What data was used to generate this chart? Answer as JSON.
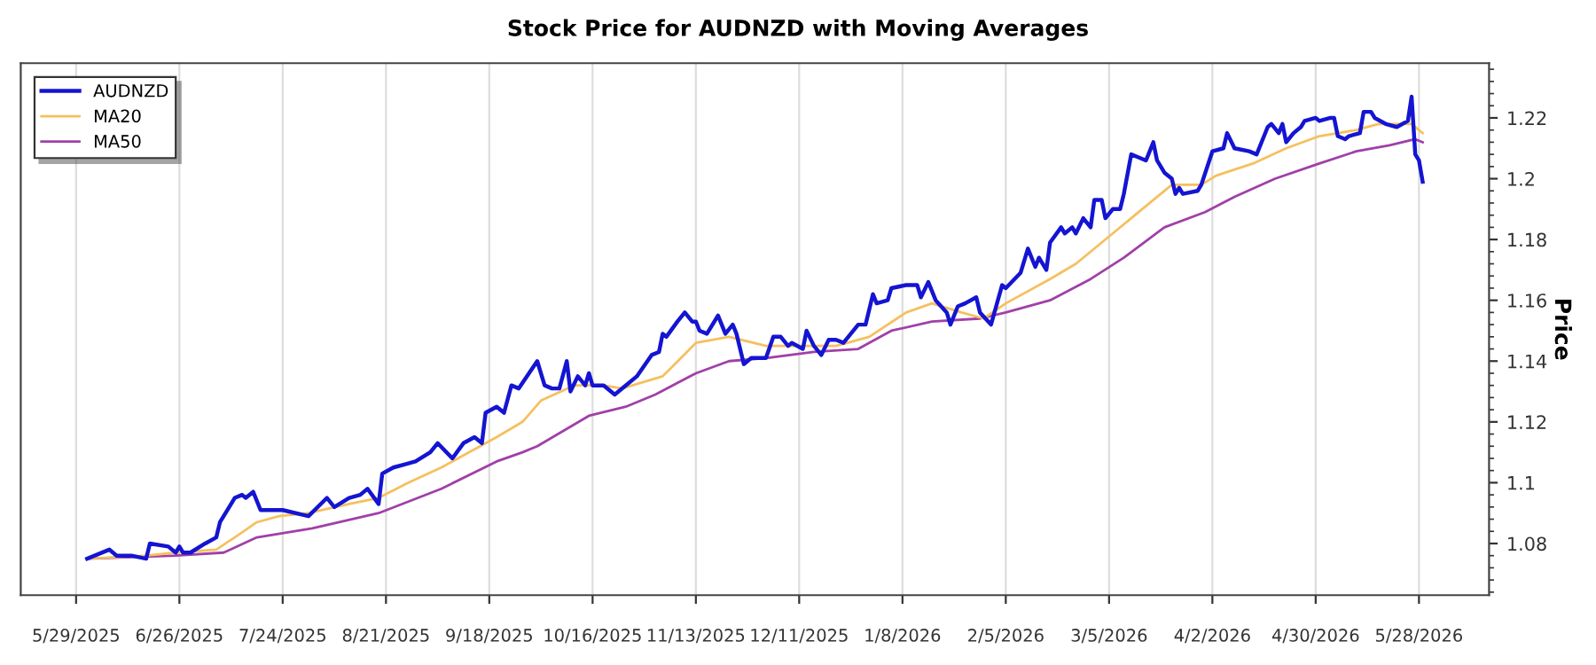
{
  "chart_data": {
    "type": "line",
    "title": "Stock Price for AUDNZD with Moving Averages",
    "ylabel": "Price",
    "xlim": [
      "2025-05-14",
      "2026-06-16"
    ],
    "ylim": [
      1.063,
      1.238
    ],
    "xticks": [
      {
        "value": "2025-05-29",
        "label": "5/29/2025"
      },
      {
        "value": "2025-06-26",
        "label": "6/26/2025"
      },
      {
        "value": "2025-07-24",
        "label": "7/24/2025"
      },
      {
        "value": "2025-08-21",
        "label": "8/21/2025"
      },
      {
        "value": "2025-09-18",
        "label": "9/18/2025"
      },
      {
        "value": "2025-10-16",
        "label": "10/16/2025"
      },
      {
        "value": "2025-11-13",
        "label": "11/13/2025"
      },
      {
        "value": "2025-12-11",
        "label": "12/11/2025"
      },
      {
        "value": "2026-01-08",
        "label": "1/8/2026"
      },
      {
        "value": "2026-02-05",
        "label": "2/5/2026"
      },
      {
        "value": "2026-03-05",
        "label": "3/5/2026"
      },
      {
        "value": "2026-04-02",
        "label": "4/2/2026"
      },
      {
        "value": "2026-04-30",
        "label": "4/30/2026"
      },
      {
        "value": "2026-05-28",
        "label": "5/28/2026"
      }
    ],
    "yticks": [
      1.08,
      1.1,
      1.12,
      1.14,
      1.16,
      1.18,
      1.2,
      1.22
    ],
    "grid": "x",
    "legend": "top left",
    "marker": "none",
    "line_style": "solid",
    "series": [
      {
        "name": "AUDNZD",
        "color": "#1414d2",
        "x": [
          "2025-06-01",
          "2025-06-07",
          "2025-06-09",
          "2025-06-13",
          "2025-06-17",
          "2025-06-18",
          "2025-06-23",
          "2025-06-25",
          "2025-06-26",
          "2025-06-27",
          "2025-06-29",
          "2025-07-03",
          "2025-07-06",
          "2025-07-07",
          "2025-07-11",
          "2025-07-13",
          "2025-07-14",
          "2025-07-16",
          "2025-07-18",
          "2025-07-21",
          "2025-07-24",
          "2025-07-31",
          "2025-08-05",
          "2025-08-07",
          "2025-08-11",
          "2025-08-14",
          "2025-08-16",
          "2025-08-19",
          "2025-08-20",
          "2025-08-23",
          "2025-08-26",
          "2025-08-29",
          "2025-09-02",
          "2025-09-04",
          "2025-09-08",
          "2025-09-11",
          "2025-09-14",
          "2025-09-16",
          "2025-09-17",
          "2025-09-20",
          "2025-09-22",
          "2025-09-24",
          "2025-09-26",
          "2025-10-01",
          "2025-10-03",
          "2025-10-05",
          "2025-10-07",
          "2025-10-09",
          "2025-10-10",
          "2025-10-12",
          "2025-10-14",
          "2025-10-15",
          "2025-10-16",
          "2025-10-19",
          "2025-10-22",
          "2025-10-25",
          "2025-10-28",
          "2025-11-01",
          "2025-11-03",
          "2025-11-04",
          "2025-11-05",
          "2025-11-08",
          "2025-11-10",
          "2025-11-12",
          "2025-11-13",
          "2025-11-14",
          "2025-11-16",
          "2025-11-19",
          "2025-11-21",
          "2025-11-23",
          "2025-11-24",
          "2025-11-26",
          "2025-11-28",
          "2025-12-02",
          "2025-12-04",
          "2025-12-06",
          "2025-12-08",
          "2025-12-09",
          "2025-12-12",
          "2025-12-13",
          "2025-12-15",
          "2025-12-17",
          "2025-12-19",
          "2025-12-21",
          "2025-12-23",
          "2025-12-27",
          "2025-12-29",
          "2025-12-31",
          "2026-01-01",
          "2026-01-04",
          "2026-01-05",
          "2026-01-09",
          "2026-01-12",
          "2026-01-13",
          "2026-01-15",
          "2026-01-17",
          "2026-01-20",
          "2026-01-21",
          "2026-01-23",
          "2026-01-25",
          "2026-01-28",
          "2026-01-29",
          "2026-02-01",
          "2026-02-04",
          "2026-02-05",
          "2026-02-09",
          "2026-02-11",
          "2026-02-13",
          "2026-02-14",
          "2026-02-16",
          "2026-02-17",
          "2026-02-20",
          "2026-02-21",
          "2026-02-23",
          "2026-02-24",
          "2026-02-26",
          "2026-02-28",
          "2026-03-01",
          "2026-03-03",
          "2026-03-04",
          "2026-03-06",
          "2026-03-08",
          "2026-03-09",
          "2026-03-11",
          "2026-03-13",
          "2026-03-15",
          "2026-03-17",
          "2026-03-18",
          "2026-03-20",
          "2026-03-22",
          "2026-03-23",
          "2026-03-24",
          "2026-03-25",
          "2026-03-29",
          "2026-03-30",
          "2026-04-02",
          "2026-04-05",
          "2026-04-06",
          "2026-04-08",
          "2026-04-12",
          "2026-04-14",
          "2026-04-17",
          "2026-04-18",
          "2026-04-20",
          "2026-04-21",
          "2026-04-22",
          "2026-04-24",
          "2026-04-26",
          "2026-04-27",
          "2026-04-30",
          "2026-05-01",
          "2026-05-04",
          "2026-05-05",
          "2026-05-06",
          "2026-05-08",
          "2026-05-09",
          "2026-05-12",
          "2026-05-13",
          "2026-05-15",
          "2026-05-16",
          "2026-05-19",
          "2026-05-22",
          "2026-05-25",
          "2026-05-26",
          "2026-05-27",
          "2026-05-28",
          "2026-05-29"
        ],
        "values": [
          1.075,
          1.078,
          1.076,
          1.076,
          1.075,
          1.08,
          1.079,
          1.077,
          1.079,
          1.077,
          1.077,
          1.08,
          1.082,
          1.087,
          1.095,
          1.096,
          1.095,
          1.097,
          1.091,
          1.091,
          1.091,
          1.089,
          1.095,
          1.092,
          1.095,
          1.096,
          1.098,
          1.093,
          1.103,
          1.105,
          1.106,
          1.107,
          1.11,
          1.113,
          1.108,
          1.113,
          1.115,
          1.113,
          1.123,
          1.125,
          1.123,
          1.132,
          1.131,
          1.14,
          1.132,
          1.131,
          1.131,
          1.14,
          1.13,
          1.135,
          1.132,
          1.136,
          1.132,
          1.132,
          1.129,
          1.132,
          1.135,
          1.142,
          1.143,
          1.149,
          1.148,
          1.153,
          1.156,
          1.153,
          1.153,
          1.15,
          1.149,
          1.155,
          1.149,
          1.152,
          1.149,
          1.139,
          1.141,
          1.141,
          1.148,
          1.148,
          1.145,
          1.146,
          1.144,
          1.15,
          1.145,
          1.142,
          1.147,
          1.147,
          1.146,
          1.152,
          1.152,
          1.162,
          1.159,
          1.16,
          1.164,
          1.165,
          1.165,
          1.161,
          1.166,
          1.16,
          1.156,
          1.152,
          1.158,
          1.159,
          1.161,
          1.156,
          1.152,
          1.165,
          1.164,
          1.169,
          1.177,
          1.171,
          1.174,
          1.17,
          1.179,
          1.184,
          1.182,
          1.184,
          1.182,
          1.187,
          1.184,
          1.193,
          1.193,
          1.187,
          1.19,
          1.19,
          1.195,
          1.208,
          1.207,
          1.206,
          1.212,
          1.206,
          1.202,
          1.2,
          1.195,
          1.197,
          1.195,
          1.196,
          1.198,
          1.209,
          1.21,
          1.215,
          1.21,
          1.209,
          1.208,
          1.217,
          1.218,
          1.215,
          1.218,
          1.212,
          1.215,
          1.217,
          1.219,
          1.22,
          1.219,
          1.22,
          1.22,
          1.214,
          1.213,
          1.214,
          1.215,
          1.222,
          1.222,
          1.22,
          1.218,
          1.217,
          1.219,
          1.227,
          1.208,
          1.206,
          1.199
        ]
      },
      {
        "name": "MA20",
        "color": "#f5c060",
        "x": [
          "2025-06-01",
          "2025-06-17",
          "2025-06-25",
          "2025-07-06",
          "2025-07-11",
          "2025-07-17",
          "2025-07-23",
          "2025-07-31",
          "2025-08-11",
          "2025-08-19",
          "2025-08-27",
          "2025-09-05",
          "2025-09-14",
          "2025-09-20",
          "2025-09-27",
          "2025-10-02",
          "2025-10-11",
          "2025-10-19",
          "2025-10-24",
          "2025-11-04",
          "2025-11-13",
          "2025-11-22",
          "2025-12-02",
          "2025-12-08",
          "2025-12-21",
          "2025-12-30",
          "2026-01-09",
          "2026-01-16",
          "2026-01-24",
          "2026-01-30",
          "2026-02-05",
          "2026-02-17",
          "2026-02-24",
          "2026-03-06",
          "2026-03-15",
          "2026-03-22",
          "2026-03-25",
          "2026-03-30",
          "2026-04-03",
          "2026-04-13",
          "2026-04-22",
          "2026-05-01",
          "2026-05-11",
          "2026-05-17",
          "2026-05-23",
          "2026-05-26",
          "2026-05-29"
        ],
        "values": [
          1.075,
          1.076,
          1.077,
          1.078,
          1.082,
          1.087,
          1.089,
          1.09,
          1.093,
          1.095,
          1.1,
          1.105,
          1.111,
          1.115,
          1.12,
          1.127,
          1.132,
          1.132,
          1.131,
          1.135,
          1.146,
          1.148,
          1.145,
          1.145,
          1.145,
          1.148,
          1.156,
          1.159,
          1.156,
          1.154,
          1.159,
          1.167,
          1.172,
          1.182,
          1.191,
          1.198,
          1.198,
          1.198,
          1.201,
          1.205,
          1.21,
          1.214,
          1.216,
          1.218,
          1.218,
          1.218,
          1.215
        ]
      },
      {
        "name": "MA50",
        "color": "#a040a8",
        "x": [
          "2025-06-01",
          "2025-06-25",
          "2025-07-08",
          "2025-07-17",
          "2025-08-01",
          "2025-08-19",
          "2025-09-05",
          "2025-09-20",
          "2025-09-27",
          "2025-10-01",
          "2025-10-15",
          "2025-10-25",
          "2025-11-02",
          "2025-11-13",
          "2025-11-22",
          "2025-12-02",
          "2025-12-15",
          "2025-12-27",
          "2026-01-05",
          "2026-01-16",
          "2026-01-29",
          "2026-02-05",
          "2026-02-17",
          "2026-02-28",
          "2026-03-09",
          "2026-03-20",
          "2026-03-31",
          "2026-04-08",
          "2026-04-19",
          "2026-05-01",
          "2026-05-11",
          "2026-05-20",
          "2026-05-27",
          "2026-05-29"
        ],
        "values": [
          1.075,
          1.076,
          1.077,
          1.082,
          1.085,
          1.09,
          1.098,
          1.107,
          1.11,
          1.112,
          1.122,
          1.125,
          1.129,
          1.136,
          1.14,
          1.141,
          1.143,
          1.144,
          1.15,
          1.153,
          1.154,
          1.156,
          1.16,
          1.167,
          1.174,
          1.184,
          1.189,
          1.194,
          1.2,
          1.205,
          1.209,
          1.211,
          1.213,
          1.212
        ]
      }
    ]
  }
}
